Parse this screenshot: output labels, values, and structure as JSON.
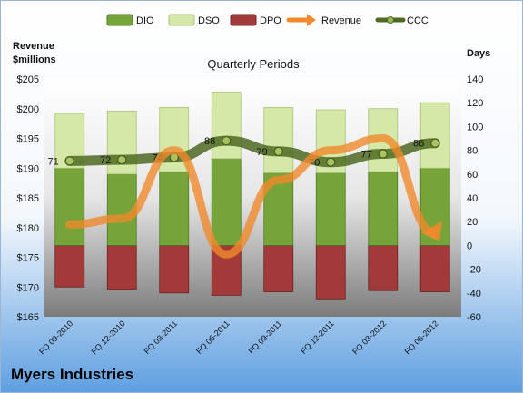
{
  "company": "Myers Industries",
  "legend": {
    "dio": "DIO",
    "dso": "DSO",
    "dpo": "DPO",
    "revenue": "Revenue",
    "ccc": "CCC"
  },
  "colors": {
    "dio": "#76a43a",
    "dso": "#d6e8a8",
    "dpo": "#a33a3a",
    "revenue": "#f08a2c",
    "ccc": "#4e6a22"
  },
  "chart_data": {
    "type": "bar",
    "title": "Quarterly Periods",
    "ylabel_left": "Revenue $millions",
    "ylabel_right": "Days",
    "categories": [
      "FQ 09-2010",
      "FQ 12-2010",
      "FQ 03-2011",
      "FQ 06-2011",
      "FQ 09-2011",
      "FQ 12-2011",
      "FQ 03-2012",
      "FQ 06-2012"
    ],
    "left_axis": {
      "min": 165,
      "max": 205,
      "step": 5,
      "ticks": [
        "$165",
        "$170",
        "$175",
        "$180",
        "$185",
        "$190",
        "$195",
        "$200",
        "$205"
      ]
    },
    "right_axis": {
      "min": -60,
      "max": 140,
      "step": 20,
      "ticks": [
        "-60",
        "-40",
        "-20",
        "0",
        "20",
        "40",
        "60",
        "80",
        "100",
        "120",
        "140"
      ]
    },
    "series": [
      {
        "name": "DIO",
        "type": "stacked-bar",
        "axis": "right",
        "values": [
          65,
          60,
          62,
          73,
          61,
          61,
          62,
          65
        ]
      },
      {
        "name": "DSO",
        "type": "stacked-bar",
        "axis": "right",
        "values": [
          46,
          53,
          54,
          56,
          55,
          53,
          53,
          55
        ]
      },
      {
        "name": "DPO",
        "type": "stacked-bar-negative",
        "axis": "right",
        "values": [
          -35,
          -37,
          -40,
          -42,
          -39,
          -45,
          -38,
          -39
        ]
      },
      {
        "name": "Revenue",
        "type": "line",
        "axis": "left",
        "values": [
          180.5,
          181.5,
          193.0,
          175.5,
          188.0,
          193.0,
          195.0,
          179.0
        ]
      },
      {
        "name": "CCC",
        "type": "line",
        "axis": "right",
        "values": [
          71,
          72,
          74,
          88,
          79,
          70,
          77,
          86
        ],
        "labels": [
          "71",
          "72",
          "74",
          "88",
          "79",
          "70",
          "77",
          "86"
        ]
      }
    ]
  }
}
